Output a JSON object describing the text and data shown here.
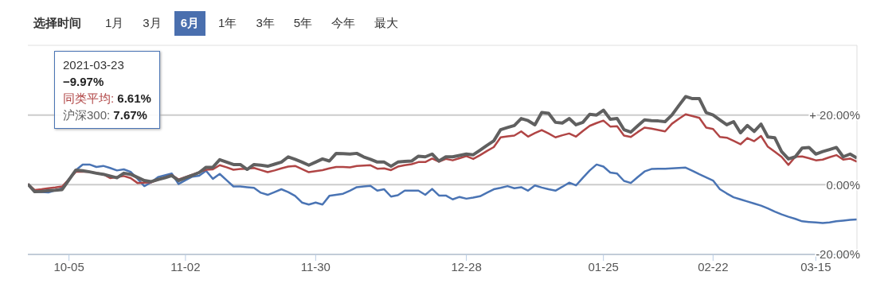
{
  "chart_data": {
    "type": "line",
    "grid": "y",
    "marker": "none",
    "line_style": "solid",
    "annotations": [
      "选择时间",
      "1月",
      "3月",
      "6月",
      "1年",
      "3年",
      "5年",
      "今年",
      "最大",
      "2021-03-23",
      "−9.97%",
      ": 6.61%",
      ": 7.67%"
    ],
    "categories": [
      null,
      null,
      null,
      null,
      null,
      null,
      "10-05",
      null,
      null,
      null,
      null,
      null,
      null,
      null,
      null,
      null,
      null,
      null,
      null,
      null,
      null,
      null,
      null,
      "11-02",
      null,
      null,
      null,
      null,
      null,
      null,
      null,
      null,
      null,
      null,
      null,
      null,
      null,
      null,
      null,
      null,
      null,
      null,
      "11-30",
      null,
      null,
      null,
      null,
      null,
      null,
      null,
      null,
      null,
      null,
      null,
      null,
      null,
      null,
      null,
      null,
      null,
      null,
      null,
      null,
      null,
      "12-28",
      null,
      null,
      null,
      null,
      null,
      null,
      null,
      null,
      null,
      null,
      null,
      null,
      null,
      null,
      null,
      null,
      null,
      null,
      null,
      "01-25",
      null,
      null,
      null,
      null,
      null,
      null,
      null,
      null,
      null,
      null,
      null,
      null,
      null,
      null,
      null,
      "02-22",
      null,
      null,
      null,
      null,
      null,
      null,
      null,
      null,
      null,
      null,
      null,
      null,
      null,
      null,
      "03-15",
      null,
      null,
      null,
      null,
      null,
      null
    ],
    "ylim": [
      -20,
      40
    ],
    "yticks": [
      {
        "value": -20,
        "label": "-20.00%"
      },
      {
        "value": 0,
        "label": "0.00%"
      },
      {
        "value": 20,
        "label": "+ 20.00%"
      }
    ],
    "series": [
      {
        "color": "#4a74b4",
        "values": [
          0.2,
          -2,
          -2.1,
          -2.2,
          -1.6,
          -1,
          1.6,
          4.2,
          5.8,
          5.8,
          5.1,
          5.4,
          4.8,
          4.1,
          4.4,
          3.7,
          1.7,
          -0.4,
          0.7,
          2.2,
          2.7,
          3.2,
          0.2,
          1.3,
          2.3,
          2.6,
          4,
          1.7,
          3.1,
          1.3,
          -0.5,
          -0.5,
          -0.7,
          -0.9,
          -2.3,
          -2.9,
          -2.1,
          -1.3,
          -2.1,
          -3.2,
          -5.1,
          -5.7,
          -5.1,
          -5.7,
          -3.2,
          -2.9,
          -2.6,
          -1.7,
          -0.7,
          -0.5,
          -0.3,
          -1.7,
          -1.3,
          -3.4,
          -3,
          -1.7,
          -1.7,
          -1.7,
          -2.9,
          -1.2,
          -3.1,
          -3.1,
          -4.2,
          -3.5,
          -4,
          -3.7,
          -3.3,
          -2.3,
          -1.3,
          -0.9,
          -0.4,
          -1,
          -0.7,
          -1.7,
          -0.2,
          -0.8,
          -1.3,
          -1.7,
          -0.6,
          0.6,
          -0.2,
          2,
          4.1,
          5.8,
          5.2,
          3.5,
          3.2,
          1.1,
          0.5,
          2.2,
          3.8,
          4.5,
          4.6,
          4.6,
          4.7,
          4.8,
          4.9,
          4,
          3,
          2.1,
          1.2,
          -1.3,
          -2.5,
          -3.6,
          -4.2,
          -4.8,
          -5.4,
          -6,
          -6.8,
          -7.7,
          -8.5,
          -9.2,
          -9.8,
          -10.5,
          -10.7,
          -10.8,
          -11,
          -10.8,
          -10.5,
          -10.3,
          -10.1,
          -9.97
        ]
      },
      {
        "name": "同类平均",
        "color": "#b04545",
        "values": [
          0.2,
          -1.5,
          -1.3,
          -1,
          -0.8,
          -0.5,
          1.6,
          3.7,
          3.7,
          3.7,
          3.4,
          3,
          1.9,
          2.2,
          2.5,
          1.9,
          0.5,
          0.6,
          0.7,
          1.4,
          2.1,
          2.8,
          1.5,
          2.2,
          2.9,
          3.6,
          4.3,
          4.4,
          5.6,
          5,
          4.3,
          4.5,
          4.6,
          4.8,
          4.2,
          3.6,
          4.1,
          4.7,
          5.2,
          5.4,
          4.5,
          3.6,
          3.9,
          4.2,
          4.7,
          5.1,
          5.1,
          5,
          5.4,
          5.5,
          5.6,
          4.6,
          4.7,
          4.2,
          5.2,
          5.6,
          5.9,
          6.5,
          6.5,
          7.5,
          6.6,
          7.4,
          7,
          7.6,
          8.2,
          7.4,
          8.5,
          9.7,
          10.8,
          13.6,
          13.9,
          14.1,
          15.3,
          13.8,
          14.8,
          15.7,
          14.7,
          13.6,
          14.2,
          14.7,
          13.8,
          15.4,
          16.9,
          17.7,
          18.4,
          16.7,
          16.8,
          14.1,
          13.7,
          15.1,
          16.4,
          16.1,
          15.7,
          15.3,
          17.5,
          18.9,
          20.2,
          19.7,
          19.2,
          16.4,
          16,
          13.7,
          13.5,
          12.6,
          11.6,
          13.4,
          12.5,
          14,
          10.9,
          9.5,
          8,
          5.7,
          8,
          8.1,
          7.6,
          7,
          7.2,
          7.9,
          8.5,
          7.2,
          7.5,
          6.61
        ]
      },
      {
        "name": "沪深300",
        "color": "#606060",
        "values": [
          0.2,
          -2,
          -1.9,
          -1.7,
          -1.6,
          -1.4,
          1.4,
          4.2,
          4,
          3.7,
          3.3,
          3,
          2.5,
          2,
          3.3,
          3,
          2.1,
          1.2,
          0.9,
          1.5,
          2,
          2.6,
          1.2,
          2,
          2.7,
          3.5,
          5,
          5,
          7.2,
          6.5,
          5.8,
          5.8,
          4.4,
          5.8,
          5.6,
          5.3,
          5.9,
          6.5,
          8,
          7.3,
          6.5,
          5.6,
          6.5,
          7.4,
          6.8,
          9,
          8.9,
          8.8,
          9,
          8,
          7.3,
          6.5,
          6.5,
          5.3,
          6.5,
          6.7,
          6.8,
          8.2,
          8,
          8.8,
          6.8,
          8,
          8,
          8.4,
          8.8,
          8.6,
          9.9,
          11.3,
          12.6,
          15.8,
          16.4,
          17,
          19,
          18.4,
          17.2,
          20.7,
          20.5,
          17.9,
          17.7,
          19,
          17.2,
          17.9,
          20.2,
          20,
          21.4,
          18.8,
          19,
          15.8,
          15.1,
          16.9,
          18.6,
          18.4,
          18.3,
          18.1,
          20,
          22.7,
          25.3,
          24.7,
          24.7,
          20.7,
          20,
          18.6,
          17.2,
          18.1,
          14.9,
          17,
          15.3,
          17.4,
          13.7,
          13.5,
          9.5,
          7.4,
          8,
          10.5,
          10.7,
          8.8,
          9.5,
          10.1,
          10.7,
          8,
          8.8,
          7.67
        ]
      }
    ]
  }
}
